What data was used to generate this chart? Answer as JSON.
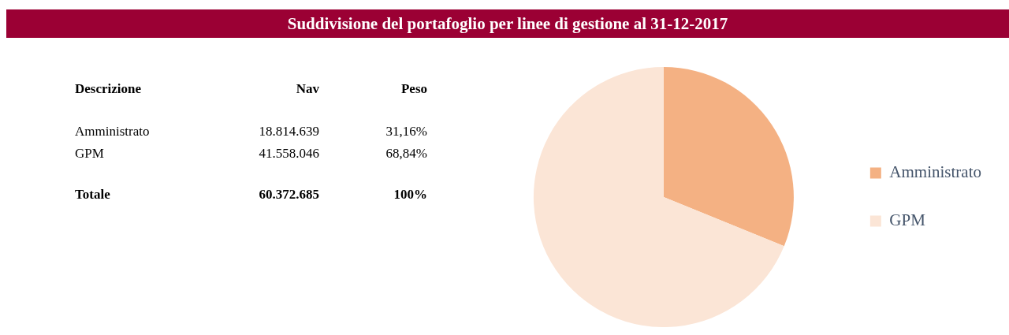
{
  "chart_data": {
    "type": "pie",
    "title": "Suddivisione del portafoglio per linee di gestione al 31-12-2017",
    "categories": [
      "Amministrato",
      "GPM"
    ],
    "values": [
      31.16,
      68.84
    ],
    "colors": [
      "#f4b183",
      "#fbe5d6"
    ],
    "annotations": [
      "Descrizione",
      "Nav",
      "Peso",
      "18.814.639",
      "41.558.046",
      "31,16%",
      "68,84%",
      "Totale",
      "60.372.685",
      "100%"
    ],
    "legend": "right"
  }
}
